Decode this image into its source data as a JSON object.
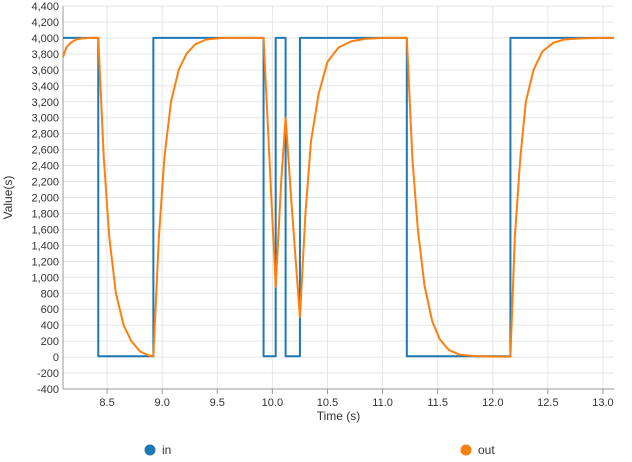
{
  "chart_data": {
    "type": "line",
    "xlabel": "Time (s)",
    "ylabel": "Value(s)",
    "xlim": [
      8.1,
      13.1
    ],
    "ylim": [
      -400,
      4400
    ],
    "x_ticks": [
      8.5,
      9.0,
      9.5,
      10.0,
      10.5,
      11.0,
      11.5,
      12.0,
      12.5,
      13.0
    ],
    "x_tick_labels": [
      "8.5",
      "9.0",
      "9.5",
      "10.0",
      "10.5",
      "11.0",
      "11.5",
      "12.0",
      "12.5",
      "13.0"
    ],
    "y_ticks": [
      -400,
      -200,
      0,
      200,
      400,
      600,
      800,
      1000,
      1200,
      1400,
      1600,
      1800,
      2000,
      2200,
      2400,
      2600,
      2800,
      3000,
      3200,
      3400,
      3600,
      3800,
      4000,
      4200,
      4400
    ],
    "y_tick_labels": [
      "-400",
      "-200",
      "0",
      "200",
      "400",
      "600",
      "800",
      "1,000",
      "1,200",
      "1,400",
      "1,600",
      "1,800",
      "2,000",
      "2,200",
      "2,400",
      "2,600",
      "2,800",
      "3,000",
      "3,200",
      "3,400",
      "3,600",
      "3,800",
      "4,000",
      "4,200",
      "4,400"
    ],
    "grid": true,
    "legend_position": "bottom",
    "series": [
      {
        "name": "in",
        "color": "#1f77b4",
        "x": [
          8.1,
          8.42,
          8.42,
          8.92,
          8.92,
          9.92,
          9.92,
          10.03,
          10.03,
          10.12,
          10.12,
          10.25,
          10.25,
          11.22,
          11.22,
          12.16,
          12.16,
          13.1
        ],
        "y": [
          4000,
          4000,
          10,
          10,
          4000,
          4000,
          10,
          10,
          4000,
          4000,
          10,
          10,
          4000,
          4000,
          10,
          10,
          4000,
          4000
        ]
      },
      {
        "name": "out",
        "color": "#ff7f0e",
        "x": [
          8.1,
          8.13,
          8.17,
          8.22,
          8.28,
          8.35,
          8.42,
          8.47,
          8.52,
          8.58,
          8.65,
          8.72,
          8.8,
          8.88,
          8.92,
          8.97,
          9.02,
          9.08,
          9.15,
          9.22,
          9.3,
          9.4,
          9.55,
          9.75,
          9.92,
          10.03,
          10.08,
          10.12,
          10.18,
          10.25,
          10.3,
          10.35,
          10.42,
          10.5,
          10.6,
          10.72,
          10.85,
          11.0,
          11.22,
          11.27,
          11.32,
          11.38,
          11.45,
          11.52,
          11.6,
          11.7,
          11.85,
          12.0,
          12.16,
          12.2,
          12.25,
          12.3,
          12.37,
          12.45,
          12.55,
          12.65,
          12.8,
          13.0,
          13.1
        ],
        "y": [
          3760,
          3880,
          3940,
          3980,
          3995,
          4000,
          4000,
          2500,
          1500,
          800,
          400,
          200,
          70,
          20,
          10,
          1500,
          2500,
          3200,
          3600,
          3800,
          3920,
          3980,
          4000,
          4000,
          4000,
          880,
          2200,
          3000,
          1800,
          500,
          1800,
          2700,
          3300,
          3700,
          3880,
          3960,
          3990,
          4000,
          4000,
          2500,
          1600,
          900,
          450,
          220,
          90,
          30,
          10,
          5,
          5,
          1500,
          2500,
          3200,
          3600,
          3830,
          3940,
          3980,
          3995,
          4000,
          4000
        ]
      }
    ]
  }
}
